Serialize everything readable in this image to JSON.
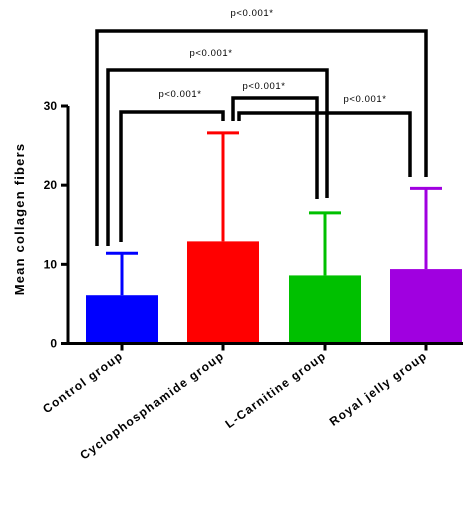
{
  "chart_data": {
    "type": "bar",
    "categories": [
      "Control group",
      "Cyclophosphamide group",
      "L-Carnitine group",
      "Royal jelly group"
    ],
    "values": [
      6.1,
      12.9,
      8.6,
      9.4
    ],
    "error_upper": [
      11.4,
      26.6,
      16.5,
      19.6
    ],
    "colors": [
      "#0000ff",
      "#ff0000",
      "#00c000",
      "#a000e0"
    ],
    "ylabel": "Mean collagen fibers",
    "xlabel": "",
    "ylim": [
      0,
      30
    ],
    "yticks": [
      "0",
      "10",
      "20",
      "30"
    ],
    "grid": false,
    "comparisons": [
      {
        "groups": [
          "Control group",
          "Royal jelly group"
        ],
        "label": "p<0.001*"
      },
      {
        "groups": [
          "Control group",
          "L-Carnitine group"
        ],
        "label": "p<0.001*"
      },
      {
        "groups": [
          "Control group",
          "Cyclophosphamide group"
        ],
        "label": "p<0.001*"
      },
      {
        "groups": [
          "Cyclophosphamide group",
          "L-Carnitine group"
        ],
        "label": "p<0.001*"
      },
      {
        "groups": [
          "Cyclophosphamide group",
          "Royal jelly group"
        ],
        "label": "p<0.001*"
      }
    ]
  }
}
